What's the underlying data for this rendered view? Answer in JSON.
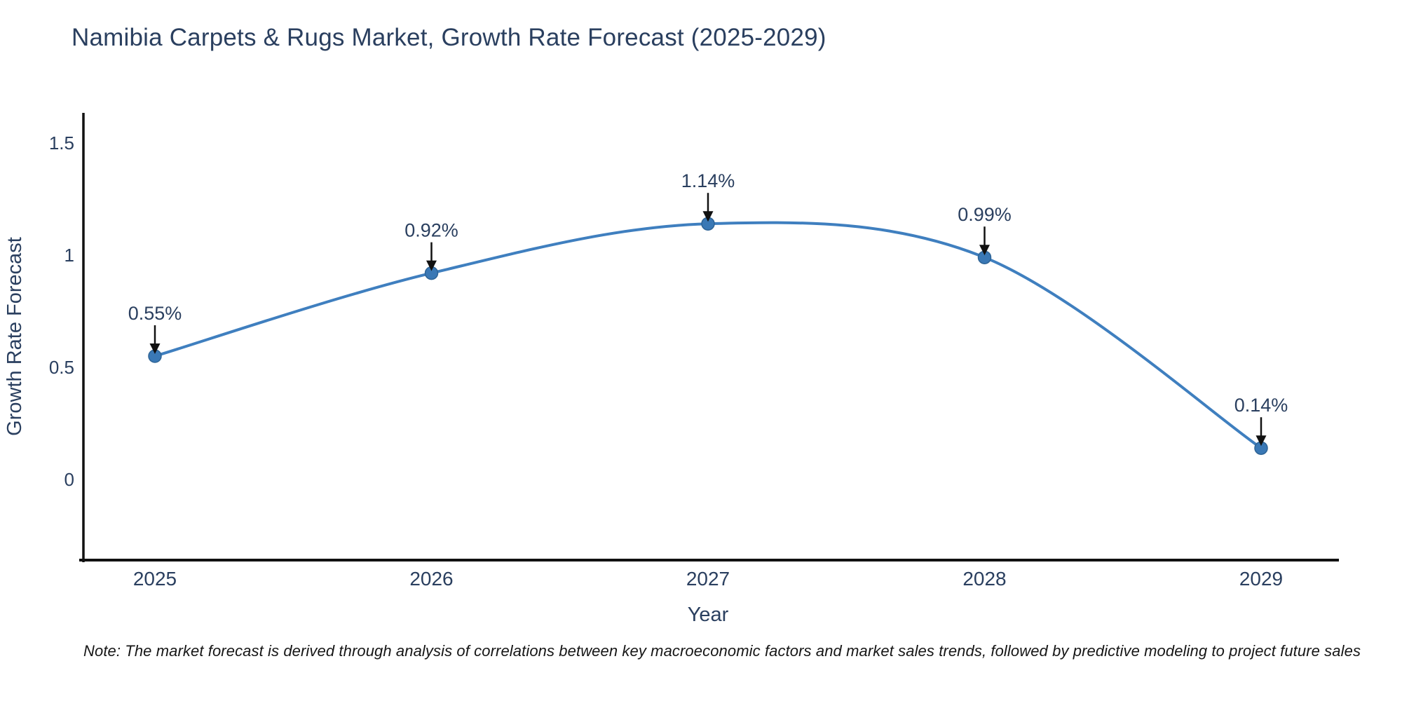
{
  "title": "Namibia Carpets & Rugs Market, Growth Rate Forecast (2025-2029)",
  "note": "Note: The market forecast is derived through analysis of correlations between key macroeconomic factors and market sales trends, followed by predictive modeling to project future sales",
  "chart_data": {
    "type": "line",
    "line_shape": "spline",
    "title": "Namibia Carpets & Rugs Market, Growth Rate Forecast (2025-2029)",
    "xlabel": "Year",
    "ylabel": "Growth Rate Forecast",
    "categories": [
      "2025",
      "2026",
      "2027",
      "2028",
      "2029"
    ],
    "values": [
      0.55,
      0.92,
      1.14,
      0.99,
      0.14
    ],
    "point_labels": [
      "0.55%",
      "0.92%",
      "1.14%",
      "0.99%",
      "0.14%"
    ],
    "yticks": [
      0,
      0.5,
      1,
      1.5
    ],
    "ytick_labels": [
      "0",
      "0.5",
      "1",
      "1.5"
    ],
    "ylim": [
      -0.36,
      1.66
    ],
    "grid": false,
    "legend_position": "none",
    "colors": {
      "line": "#3f7fbf",
      "marker_fill": "#3a78b5",
      "marker_stroke": "#2e6496",
      "axis": "#111111",
      "text": "#2a3f5f",
      "annotation_arrow": "#111111"
    }
  }
}
